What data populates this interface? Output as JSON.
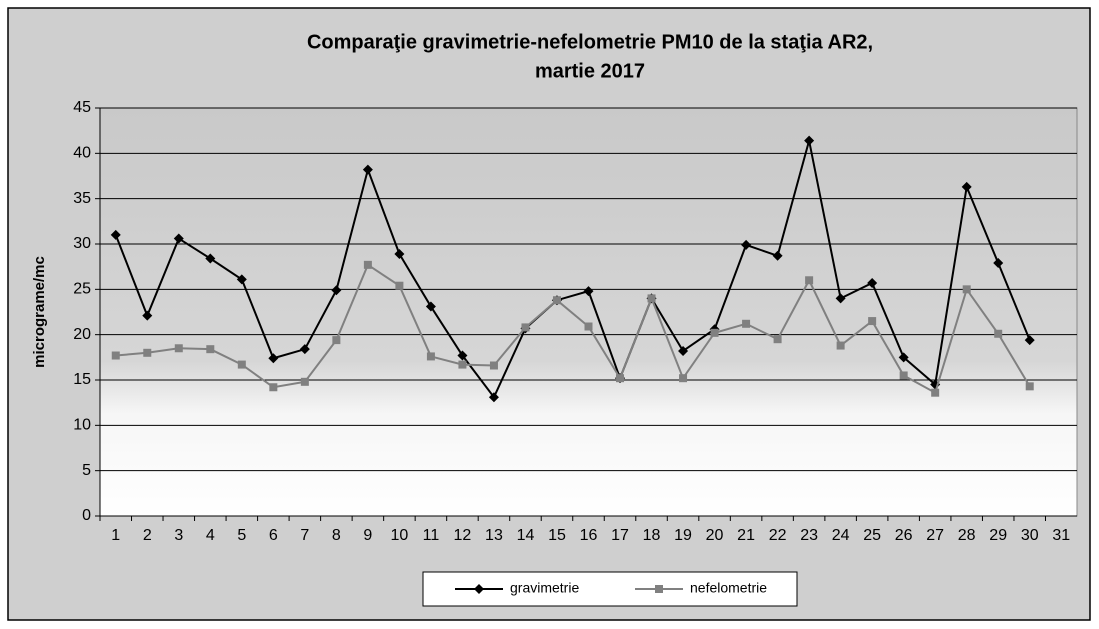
{
  "chart_data": {
    "type": "line",
    "title": [
      "Comparaţie gravimetrie-nefelometrie PM10 de la staţia AR2,",
      "martie 2017"
    ],
    "y_label": "micrograme/mc",
    "categories": [
      1,
      2,
      3,
      4,
      5,
      6,
      7,
      8,
      9,
      10,
      11,
      12,
      13,
      14,
      15,
      16,
      17,
      18,
      19,
      20,
      21,
      22,
      23,
      24,
      25,
      26,
      27,
      28,
      29,
      30,
      31
    ],
    "series": [
      {
        "name": "gravimetrie",
        "color": "#000000",
        "marker": "diamond",
        "values": [
          31.0,
          22.1,
          30.6,
          28.4,
          26.1,
          17.4,
          18.4,
          24.9,
          38.2,
          28.9,
          23.1,
          17.7,
          13.1,
          20.7,
          23.8,
          24.8,
          15.2,
          24.0,
          18.2,
          20.6,
          29.9,
          28.7,
          41.4,
          24.0,
          25.7,
          17.5,
          14.5,
          36.3,
          27.9,
          19.4,
          null
        ]
      },
      {
        "name": "nefelometrie",
        "color": "#808080",
        "marker": "square",
        "values": [
          17.7,
          18.0,
          18.5,
          18.4,
          16.7,
          14.2,
          14.8,
          19.4,
          27.7,
          25.4,
          17.6,
          16.7,
          16.6,
          20.8,
          23.8,
          20.9,
          15.2,
          24.0,
          15.2,
          20.2,
          21.2,
          19.5,
          26.0,
          18.8,
          21.5,
          15.5,
          13.6,
          25.0,
          20.1,
          14.3,
          null
        ]
      }
    ],
    "ylim": [
      0,
      45
    ],
    "yticks": [
      0,
      5,
      10,
      15,
      20,
      25,
      30,
      35,
      40,
      45
    ],
    "grid": true,
    "legend": "bottom"
  }
}
